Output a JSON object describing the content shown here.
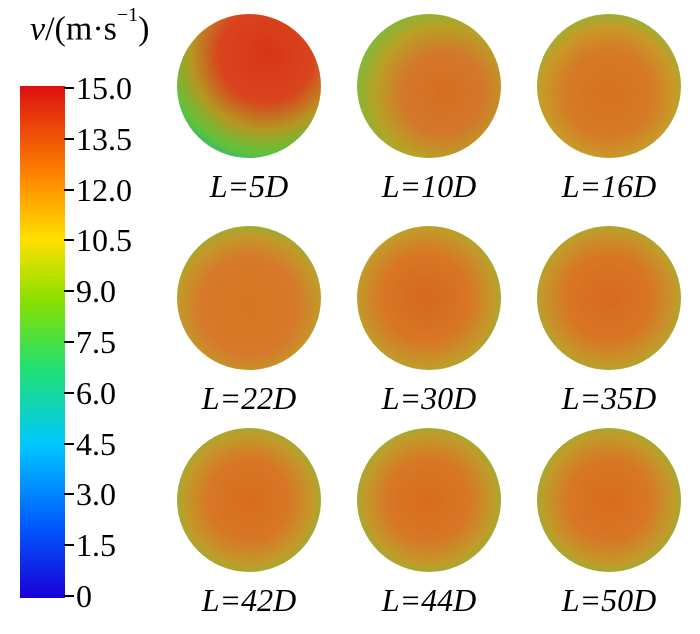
{
  "colorbar": {
    "unit_text": "(m·s",
    "unit_symbol": "v",
    "unit_exponent": "−1",
    "unit_close": ")",
    "ticks": [
      "15.0",
      "13.5",
      "12.0",
      "10.5",
      "9.0",
      "7.5",
      "6.0",
      "4.5",
      "3.0",
      "1.5",
      "0"
    ],
    "colors": [
      "#1800d8",
      "#0060ff",
      "#00c8ff",
      "#22e070",
      "#88e000",
      "#ffe000",
      "#ff8800",
      "#dd1010"
    ]
  },
  "panels": [
    {
      "label": "L=5D"
    },
    {
      "label": "L=10D"
    },
    {
      "label": "L=16D"
    },
    {
      "label": "L=22D"
    },
    {
      "label": "L=30D"
    },
    {
      "label": "L=35D"
    },
    {
      "label": "L=42D"
    },
    {
      "label": "L=44D"
    },
    {
      "label": "L=50D"
    }
  ]
}
